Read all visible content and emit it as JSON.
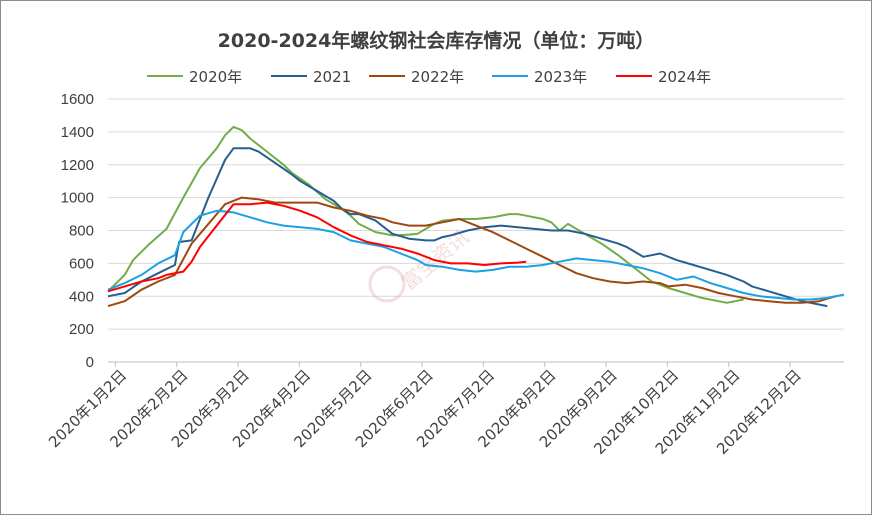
{
  "chart_data": {
    "type": "line",
    "title": "2020-2024年螺纹钢社会库存情况（单位：万吨）",
    "ylim": [
      0,
      1600
    ],
    "yticks": [
      "0",
      "200",
      "400",
      "600",
      "800",
      "1000",
      "1200",
      "1400",
      "1600"
    ],
    "x_tick_labels": [
      "2020年1月2日",
      "2020年2月2日",
      "2020年3月2日",
      "2020年4月2日",
      "2020年5月2日",
      "2020年6月2日",
      "2020年7月2日",
      "2020年8月2日",
      "2020年9月2日",
      "2020年10月2日",
      "2020年11月2日",
      "2020年12月2日"
    ],
    "x_unit": "week index (0 = 2020-01-02, 52 weekly points)",
    "grid": true,
    "legend_position": "top",
    "series": [
      {
        "name": "2020年",
        "color": "#70ad47",
        "values": [
          [
            0,
            430
          ],
          [
            2,
            530
          ],
          [
            3,
            620
          ],
          [
            5,
            720
          ],
          [
            7,
            810
          ],
          [
            9,
            1000
          ],
          [
            11,
            1180
          ],
          [
            13,
            1300
          ],
          [
            14,
            1380
          ],
          [
            15,
            1430
          ],
          [
            16,
            1410
          ],
          [
            17,
            1360
          ],
          [
            19,
            1280
          ],
          [
            21,
            1200
          ],
          [
            22,
            1150
          ],
          [
            24,
            1080
          ],
          [
            26,
            990
          ],
          [
            28,
            930
          ],
          [
            29,
            890
          ],
          [
            30,
            840
          ],
          [
            32,
            790
          ],
          [
            34,
            770
          ],
          [
            36,
            775
          ],
          [
            37,
            780
          ],
          [
            38,
            810
          ],
          [
            39,
            840
          ],
          [
            40,
            860
          ],
          [
            42,
            870
          ],
          [
            44,
            870
          ],
          [
            46,
            880
          ],
          [
            48,
            900
          ],
          [
            49,
            900
          ],
          [
            50,
            890
          ],
          [
            52,
            870
          ],
          [
            53,
            850
          ],
          [
            54,
            800
          ],
          [
            55,
            840
          ],
          [
            57,
            780
          ],
          [
            59,
            720
          ],
          [
            61,
            650
          ],
          [
            63,
            570
          ],
          [
            64,
            530
          ],
          [
            65,
            490
          ],
          [
            67,
            450
          ],
          [
            69,
            420
          ],
          [
            71,
            390
          ],
          [
            73,
            370
          ],
          [
            74,
            360
          ],
          [
            76,
            380
          ]
        ]
      },
      {
        "name": "2021",
        "color": "#255e91",
        "values": [
          [
            0,
            400
          ],
          [
            2,
            420
          ],
          [
            4,
            490
          ],
          [
            6,
            540
          ],
          [
            8,
            590
          ],
          [
            8.5,
            730
          ],
          [
            10,
            740
          ],
          [
            12,
            1000
          ],
          [
            14,
            1230
          ],
          [
            15,
            1300
          ],
          [
            17,
            1300
          ],
          [
            18,
            1280
          ],
          [
            20,
            1210
          ],
          [
            22,
            1140
          ],
          [
            23,
            1100
          ],
          [
            25,
            1040
          ],
          [
            27,
            980
          ],
          [
            28,
            930
          ],
          [
            29,
            900
          ],
          [
            30,
            900
          ],
          [
            32,
            860
          ],
          [
            34,
            780
          ],
          [
            36,
            750
          ],
          [
            38,
            740
          ],
          [
            39,
            740
          ],
          [
            40,
            760
          ],
          [
            41,
            770
          ],
          [
            43,
            800
          ],
          [
            45,
            820
          ],
          [
            47,
            830
          ],
          [
            49,
            820
          ],
          [
            51,
            810
          ],
          [
            53,
            800
          ],
          [
            55,
            800
          ],
          [
            57,
            780
          ],
          [
            59,
            750
          ],
          [
            61,
            720
          ],
          [
            62,
            700
          ],
          [
            64,
            640
          ],
          [
            65,
            650
          ],
          [
            66,
            660
          ],
          [
            68,
            620
          ],
          [
            70,
            590
          ],
          [
            72,
            560
          ],
          [
            74,
            530
          ],
          [
            76,
            490
          ],
          [
            77,
            460
          ],
          [
            79,
            430
          ],
          [
            81,
            400
          ],
          [
            83,
            370
          ],
          [
            85,
            350
          ],
          [
            86,
            340
          ]
        ]
      },
      {
        "name": "2022年",
        "color": "#9e480e",
        "values": [
          [
            0,
            340
          ],
          [
            2,
            370
          ],
          [
            4,
            440
          ],
          [
            6,
            490
          ],
          [
            8,
            530
          ],
          [
            10,
            720
          ],
          [
            11,
            780
          ],
          [
            13,
            900
          ],
          [
            14,
            960
          ],
          [
            16,
            1000
          ],
          [
            18,
            990
          ],
          [
            20,
            970
          ],
          [
            22,
            970
          ],
          [
            24,
            970
          ],
          [
            25,
            970
          ],
          [
            27,
            940
          ],
          [
            29,
            920
          ],
          [
            31,
            890
          ],
          [
            33,
            870
          ],
          [
            34,
            850
          ],
          [
            36,
            830
          ],
          [
            38,
            830
          ],
          [
            40,
            850
          ],
          [
            42,
            870
          ],
          [
            44,
            830
          ],
          [
            46,
            790
          ],
          [
            48,
            740
          ],
          [
            50,
            690
          ],
          [
            52,
            640
          ],
          [
            54,
            590
          ],
          [
            56,
            540
          ],
          [
            58,
            510
          ],
          [
            60,
            490
          ],
          [
            62,
            480
          ],
          [
            64,
            490
          ],
          [
            66,
            480
          ],
          [
            67,
            460
          ],
          [
            69,
            470
          ],
          [
            71,
            450
          ],
          [
            73,
            420
          ],
          [
            75,
            400
          ],
          [
            77,
            380
          ],
          [
            79,
            370
          ],
          [
            81,
            360
          ],
          [
            83,
            360
          ],
          [
            85,
            370
          ],
          [
            87,
            400
          ]
        ]
      },
      {
        "name": "2023年",
        "color": "#1ba1e2",
        "values": [
          [
            0,
            440
          ],
          [
            2,
            480
          ],
          [
            4,
            530
          ],
          [
            6,
            600
          ],
          [
            8,
            650
          ],
          [
            9,
            790
          ],
          [
            11,
            890
          ],
          [
            13,
            920
          ],
          [
            15,
            910
          ],
          [
            17,
            880
          ],
          [
            19,
            850
          ],
          [
            21,
            830
          ],
          [
            23,
            820
          ],
          [
            25,
            810
          ],
          [
            27,
            790
          ],
          [
            29,
            740
          ],
          [
            31,
            720
          ],
          [
            33,
            700
          ],
          [
            35,
            660
          ],
          [
            37,
            620
          ],
          [
            38,
            590
          ],
          [
            40,
            580
          ],
          [
            42,
            560
          ],
          [
            44,
            550
          ],
          [
            46,
            560
          ],
          [
            48,
            580
          ],
          [
            50,
            580
          ],
          [
            52,
            590
          ],
          [
            54,
            610
          ],
          [
            56,
            630
          ],
          [
            58,
            620
          ],
          [
            60,
            610
          ],
          [
            62,
            590
          ],
          [
            64,
            570
          ],
          [
            66,
            540
          ],
          [
            68,
            500
          ],
          [
            70,
            520
          ],
          [
            72,
            480
          ],
          [
            74,
            450
          ],
          [
            76,
            420
          ],
          [
            78,
            400
          ],
          [
            80,
            390
          ],
          [
            82,
            380
          ],
          [
            84,
            380
          ],
          [
            86,
            390
          ],
          [
            88,
            410
          ]
        ]
      },
      {
        "name": "2024年",
        "color": "#ff0000",
        "values": [
          [
            0,
            430
          ],
          [
            2,
            460
          ],
          [
            4,
            490
          ],
          [
            6,
            510
          ],
          [
            7,
            530
          ],
          [
            9,
            550
          ],
          [
            10,
            610
          ],
          [
            11,
            700
          ],
          [
            13,
            830
          ],
          [
            15,
            960
          ],
          [
            17,
            960
          ],
          [
            19,
            970
          ],
          [
            21,
            950
          ],
          [
            23,
            920
          ],
          [
            25,
            880
          ],
          [
            27,
            820
          ],
          [
            29,
            770
          ],
          [
            31,
            730
          ],
          [
            33,
            710
          ],
          [
            35,
            690
          ],
          [
            37,
            660
          ],
          [
            39,
            620
          ],
          [
            41,
            600
          ],
          [
            43,
            600
          ],
          [
            45,
            590
          ],
          [
            47,
            600
          ],
          [
            49,
            605
          ],
          [
            50,
            610
          ]
        ]
      }
    ]
  },
  "watermark": {
    "text": "富宝资讯"
  }
}
